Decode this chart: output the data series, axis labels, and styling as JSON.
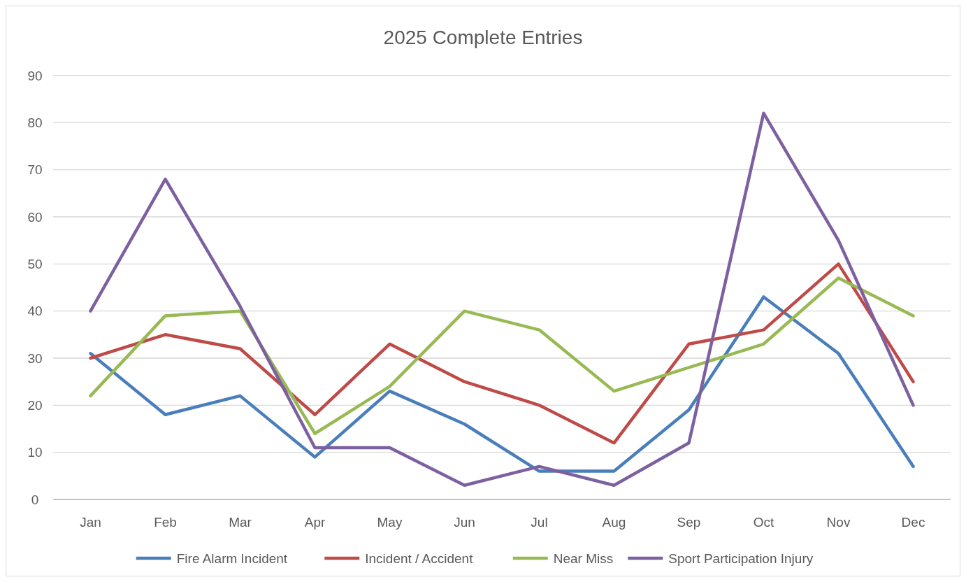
{
  "chart_data": {
    "type": "line",
    "title": "2025 Complete Entries",
    "categories": [
      "Jan",
      "Feb",
      "Mar",
      "Apr",
      "May",
      "Jun",
      "Jul",
      "Aug",
      "Sep",
      "Oct",
      "Nov",
      "Dec"
    ],
    "series": [
      {
        "name": "Fire Alarm Incident",
        "color": "#4a7ebb",
        "values": [
          31,
          18,
          22,
          9,
          23,
          16,
          6,
          6,
          19,
          43,
          31,
          7
        ]
      },
      {
        "name": "Incident / Accident",
        "color": "#be4b48",
        "values": [
          30,
          35,
          32,
          18,
          33,
          25,
          20,
          12,
          33,
          36,
          50,
          25
        ]
      },
      {
        "name": "Near Miss",
        "color": "#98b954",
        "values": [
          22,
          39,
          40,
          14,
          24,
          40,
          36,
          23,
          28,
          33,
          47,
          39
        ]
      },
      {
        "name": "Sport Participation Injury",
        "color": "#7d60a0",
        "values": [
          40,
          68,
          41,
          11,
          11,
          3,
          7,
          3,
          12,
          82,
          55,
          20
        ]
      }
    ],
    "ylim": [
      0,
      90
    ],
    "yticks": [
      0,
      10,
      20,
      30,
      40,
      50,
      60,
      70,
      80,
      90
    ],
    "grid": "y",
    "legend": "bottom",
    "marker": "none",
    "line_style": "solid"
  }
}
